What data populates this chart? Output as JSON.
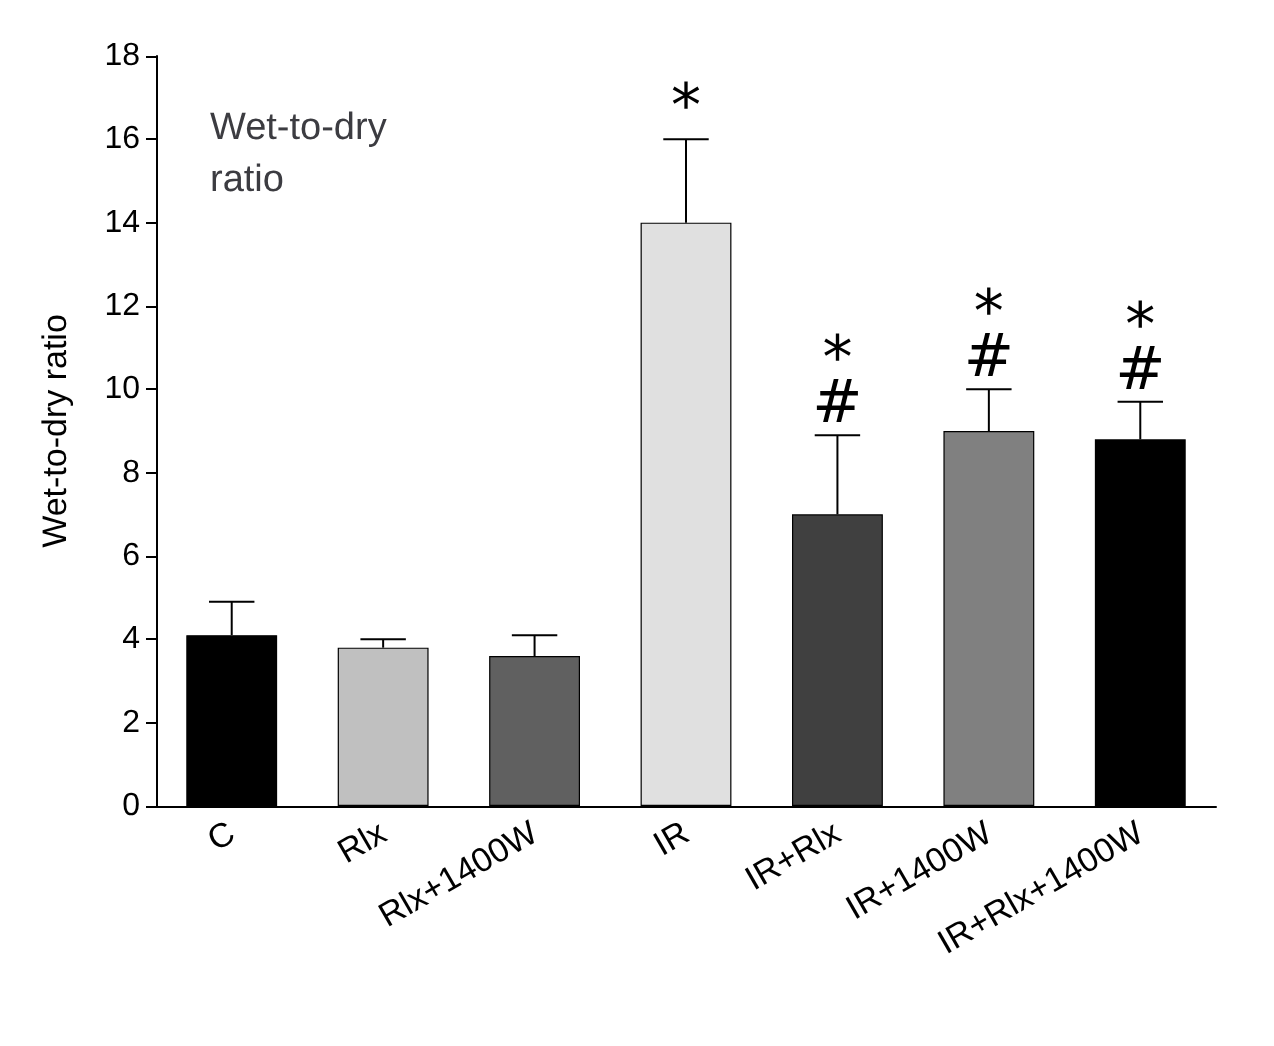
{
  "chart_data": {
    "type": "bar",
    "title": "Wet-to-dry ratio",
    "ylabel": "Wet-to-dry ratio",
    "categories": [
      "C",
      "Rlx",
      "Rlx+1400W",
      "IR",
      "IR+Rlx",
      "IR+1400W",
      "IR+Rlx+1400W"
    ],
    "values": [
      4.1,
      3.8,
      3.6,
      14,
      7,
      9,
      8.8
    ],
    "colors": [
      "#000000",
      "#c0c0c0",
      "#606060",
      "#e0e0e0",
      "#404040",
      "#808080",
      "#000000"
    ],
    "errors": [
      [
        4.1,
        4.9
      ],
      [
        3.8,
        4.0
      ],
      [
        3.6,
        4.1
      ],
      [
        14,
        16
      ],
      [
        7,
        8.9
      ],
      [
        9,
        10
      ],
      [
        8.8,
        9.7
      ]
    ],
    "ylim": [
      0,
      18
    ],
    "yticks": [
      0,
      2,
      4,
      6,
      8,
      10,
      12,
      14,
      16,
      18
    ],
    "grid": false,
    "annotations": [
      {
        "text": "*",
        "x": "IR",
        "y": 16
      },
      {
        "text": "*",
        "x": "IR+Rlx",
        "y": 8.9
      },
      {
        "text": "#",
        "x": "IR+Rlx",
        "y": 8.9
      },
      {
        "text": "*",
        "x": "IR+1400W",
        "y": 10
      },
      {
        "text": "#",
        "x": "IR+1400W",
        "y": 10
      },
      {
        "text": "*",
        "x": "IR+Rlx+1400W",
        "y": 9.7
      },
      {
        "text": "#",
        "x": "IR+Rlx+1400W",
        "y": 9.7
      }
    ]
  }
}
